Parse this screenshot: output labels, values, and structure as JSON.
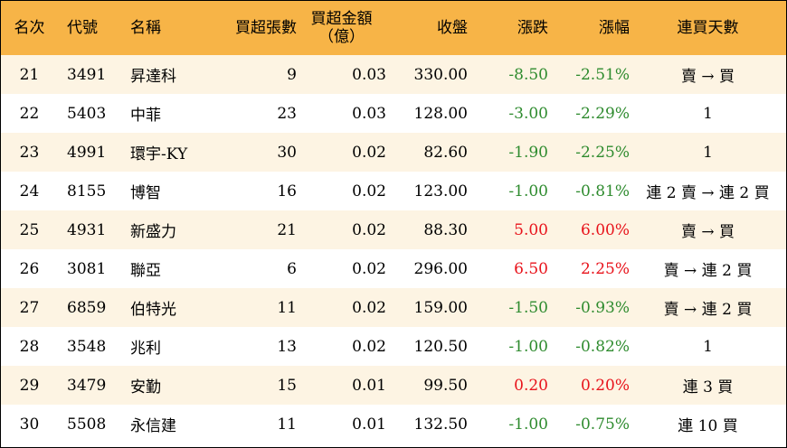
{
  "headers": {
    "rank": "名次",
    "code": "代號",
    "name": "名稱",
    "volume": "買超張數",
    "amount_line1": "買超金額",
    "amount_line2": "（億）",
    "close": "收盤",
    "change": "漲跌",
    "pct": "漲幅",
    "days": "連買天數"
  },
  "colors": {
    "header_bg": "#f7b447",
    "stripe_bg": "#fdf4e3",
    "down": "#2e8b2e",
    "up": "#e8131b"
  },
  "rows": [
    {
      "rank": "21",
      "code": "3491",
      "name": "昇達科",
      "volume": "9",
      "amount": "0.03",
      "close": "330.00",
      "change": "-8.50",
      "pct": "-2.51%",
      "days": "賣 → 買",
      "dir": "down"
    },
    {
      "rank": "22",
      "code": "5403",
      "name": "中菲",
      "volume": "23",
      "amount": "0.03",
      "close": "128.00",
      "change": "-3.00",
      "pct": "-2.29%",
      "days": "1",
      "dir": "down"
    },
    {
      "rank": "23",
      "code": "4991",
      "name": "環宇-KY",
      "volume": "30",
      "amount": "0.02",
      "close": "82.60",
      "change": "-1.90",
      "pct": "-2.25%",
      "days": "1",
      "dir": "down"
    },
    {
      "rank": "24",
      "code": "8155",
      "name": "博智",
      "volume": "16",
      "amount": "0.02",
      "close": "123.00",
      "change": "-1.00",
      "pct": "-0.81%",
      "days": "連 2 賣 → 連 2 買",
      "dir": "down"
    },
    {
      "rank": "25",
      "code": "4931",
      "name": "新盛力",
      "volume": "21",
      "amount": "0.02",
      "close": "88.30",
      "change": "5.00",
      "pct": "6.00%",
      "days": "賣 → 買",
      "dir": "up"
    },
    {
      "rank": "26",
      "code": "3081",
      "name": "聯亞",
      "volume": "6",
      "amount": "0.02",
      "close": "296.00",
      "change": "6.50",
      "pct": "2.25%",
      "days": "賣 → 連 2 買",
      "dir": "up"
    },
    {
      "rank": "27",
      "code": "6859",
      "name": "伯特光",
      "volume": "11",
      "amount": "0.02",
      "close": "159.00",
      "change": "-1.50",
      "pct": "-0.93%",
      "days": "賣 → 連 2 買",
      "dir": "down"
    },
    {
      "rank": "28",
      "code": "3548",
      "name": "兆利",
      "volume": "13",
      "amount": "0.02",
      "close": "120.50",
      "change": "-1.00",
      "pct": "-0.82%",
      "days": "1",
      "dir": "down"
    },
    {
      "rank": "29",
      "code": "3479",
      "name": "安勤",
      "volume": "15",
      "amount": "0.01",
      "close": "99.50",
      "change": "0.20",
      "pct": "0.20%",
      "days": "連 3 買",
      "dir": "up"
    },
    {
      "rank": "30",
      "code": "5508",
      "name": "永信建",
      "volume": "11",
      "amount": "0.01",
      "close": "132.50",
      "change": "-1.00",
      "pct": "-0.75%",
      "days": "連 10 買",
      "dir": "down"
    }
  ]
}
